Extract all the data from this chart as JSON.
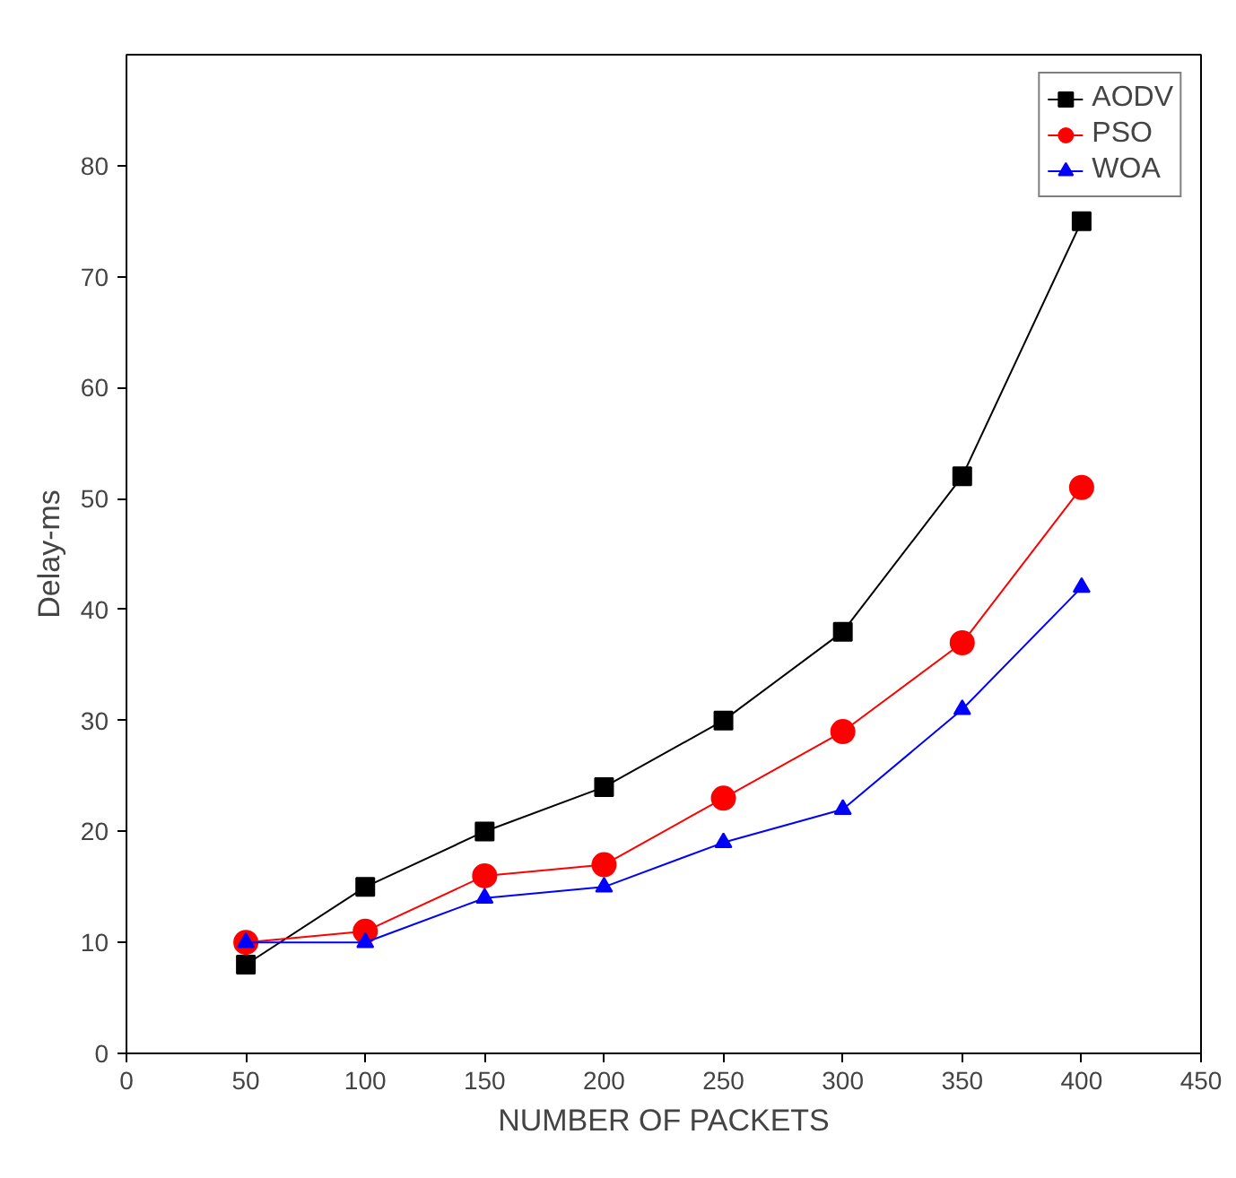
{
  "chart_data": {
    "type": "line",
    "xlabel": "NUMBER OF PACKETS",
    "ylabel": "Delay-ms",
    "x": [
      50,
      100,
      150,
      200,
      250,
      300,
      350,
      400
    ],
    "series": [
      {
        "name": "AODV",
        "color": "#000000",
        "marker": "square",
        "values": [
          8,
          15,
          20,
          24,
          30,
          38,
          52,
          75
        ]
      },
      {
        "name": "PSO",
        "color": "#ff0000",
        "marker": "circle",
        "values": [
          10,
          11,
          16,
          17,
          23,
          29,
          37,
          51
        ]
      },
      {
        "name": "WOA",
        "color": "#0000ff",
        "marker": "triangle",
        "values": [
          10,
          10,
          14,
          15,
          19,
          22,
          31,
          42
        ]
      }
    ],
    "xlim": [
      0,
      450
    ],
    "xticks": [
      0,
      50,
      100,
      150,
      200,
      250,
      300,
      350,
      400,
      450
    ],
    "ylim": [
      0,
      90
    ],
    "yticks": [
      0,
      10,
      20,
      30,
      40,
      50,
      60,
      70,
      80
    ],
    "grid": false,
    "legend": "top right",
    "line_style": "solid"
  }
}
